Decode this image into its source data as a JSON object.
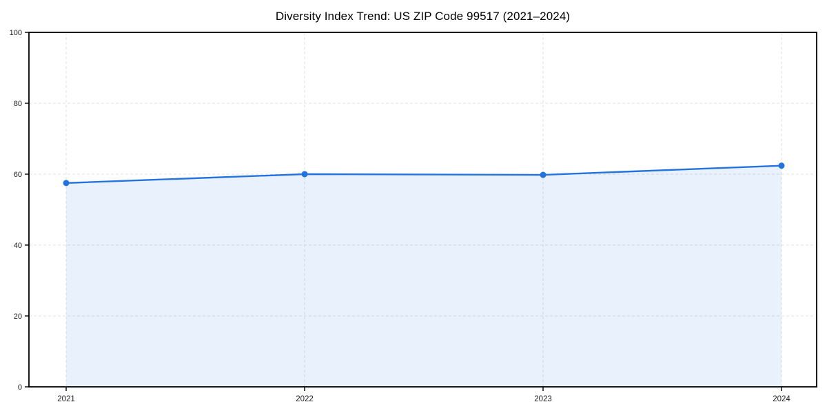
{
  "chart_data": {
    "type": "area",
    "title": "Diversity Index Trend: US ZIP Code 99517 (2021–2024)",
    "categories": [
      "2021",
      "2022",
      "2023",
      "2024"
    ],
    "series": [
      {
        "name": "Diversity Index",
        "values": [
          57.5,
          60.0,
          59.8,
          62.4
        ]
      }
    ],
    "xlabel": "",
    "ylabel": "",
    "ylim": [
      0,
      100
    ],
    "yticks": [
      0,
      20,
      40,
      60,
      80,
      100
    ],
    "grid": true,
    "grid_style": "dashed",
    "legend": "none",
    "colors": {
      "line": "#2272e0",
      "marker": "#2272e0",
      "area_fill": "#2272e0",
      "area_opacity": 0.1,
      "grid": "#e0e0e0",
      "frame": "#000000",
      "tick_text": "#1a1a1a",
      "background": "#ffffff"
    }
  }
}
